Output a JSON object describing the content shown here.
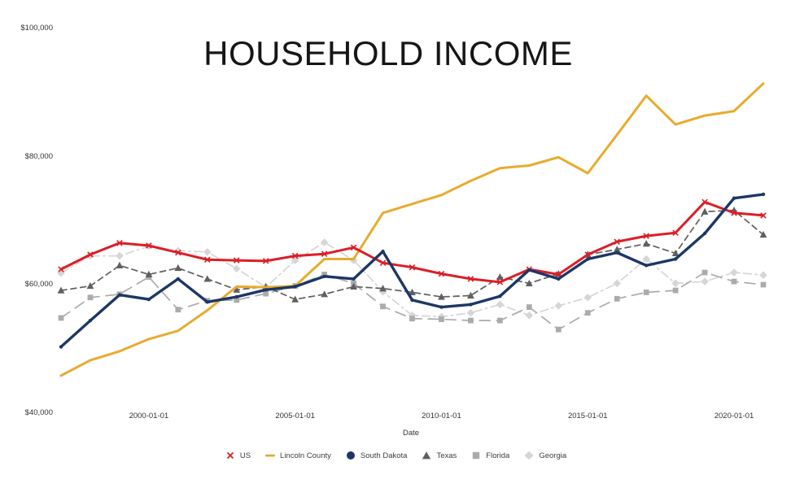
{
  "title": "HOUSEHOLD INCOME",
  "x_axis": {
    "label": "Date",
    "ticks": [
      {
        "year": 2000,
        "label": "2000-01-01"
      },
      {
        "year": 2005,
        "label": "2005-01-01"
      },
      {
        "year": 2010,
        "label": "2010-01-01"
      },
      {
        "year": 2015,
        "label": "2015-01-01"
      },
      {
        "year": 2020,
        "label": "2020-01-01"
      }
    ]
  },
  "y_axis": {
    "ticks": [
      {
        "value": 40000,
        "label": "$40,000"
      },
      {
        "value": 60000,
        "label": "$60,000"
      },
      {
        "value": 80000,
        "label": "$80,000"
      },
      {
        "value": 100000,
        "label": "$100,000"
      }
    ]
  },
  "chart_data": {
    "type": "line",
    "title": "HOUSEHOLD INCOME",
    "xlabel": "Date",
    "ylabel": "",
    "grid": false,
    "legend_position": "bottom",
    "xlim": [
      1997,
      2021
    ],
    "ylim": [
      40000,
      100000
    ],
    "x": [
      1997,
      1998,
      1999,
      2000,
      2001,
      2002,
      2003,
      2004,
      2005,
      2006,
      2007,
      2008,
      2009,
      2010,
      2011,
      2012,
      2013,
      2014,
      2015,
      2016,
      2017,
      2018,
      2019,
      2020,
      2021
    ],
    "series": [
      {
        "name": "US",
        "color": "#dc1e26",
        "marker": "x",
        "dash": "solid",
        "width": 3,
        "values": [
          62400,
          64700,
          66500,
          66100,
          65000,
          63900,
          63800,
          63700,
          64500,
          64800,
          65800,
          63400,
          62700,
          61700,
          60900,
          60400,
          62400,
          61600,
          64700,
          66700,
          67600,
          68100,
          72900,
          71200,
          70800
        ]
      },
      {
        "name": "Lincoln County",
        "color": "#e8ab2e",
        "marker": "line",
        "dash": "solid",
        "width": 3,
        "values": [
          45800,
          48200,
          49600,
          51500,
          52800,
          56000,
          59700,
          59600,
          59800,
          64000,
          64000,
          71200,
          72600,
          74000,
          76200,
          78200,
          78600,
          79900,
          77400,
          83400,
          89500,
          85000,
          86400,
          87100,
          91400
        ]
      },
      {
        "name": "South Dakota",
        "color": "#1c3766",
        "marker": "circle",
        "dash": "solid",
        "width": 3.4,
        "values": [
          50300,
          54400,
          58400,
          57700,
          60900,
          57300,
          58100,
          59200,
          59700,
          61300,
          60900,
          65200,
          57600,
          56500,
          56900,
          58200,
          62300,
          60900,
          64000,
          65000,
          63000,
          64000,
          68000,
          73500,
          74100
        ]
      },
      {
        "name": "Texas",
        "color": "#606060",
        "marker": "triangle",
        "dash": "dash",
        "width": 1.7,
        "values": [
          59100,
          59800,
          63000,
          61600,
          62600,
          60900,
          59200,
          59700,
          57700,
          58500,
          59700,
          59400,
          58800,
          58100,
          58300,
          61200,
          60200,
          61700,
          64700,
          65500,
          66400,
          64900,
          71400,
          71600,
          67800
        ]
      },
      {
        "name": "Florida",
        "color": "#ababab",
        "marker": "square",
        "dash": "longdash",
        "width": 1.7,
        "values": [
          54800,
          58000,
          58500,
          61200,
          56100,
          57500,
          57600,
          58600,
          59800,
          61600,
          60200,
          56600,
          54700,
          54600,
          54400,
          54400,
          56500,
          53000,
          55600,
          57800,
          58800,
          59100,
          61900,
          60500,
          60000
        ]
      },
      {
        "name": "Georgia",
        "color": "#d6d6d6",
        "marker": "diamond",
        "dash": "dashdot",
        "width": 1.7,
        "values": [
          61800,
          64500,
          64500,
          66000,
          65300,
          65100,
          62500,
          59600,
          63800,
          66600,
          63800,
          58900,
          55200,
          55000,
          55600,
          56900,
          55200,
          56700,
          58000,
          60200,
          64000,
          60200,
          60500,
          61900,
          61500
        ]
      }
    ]
  }
}
